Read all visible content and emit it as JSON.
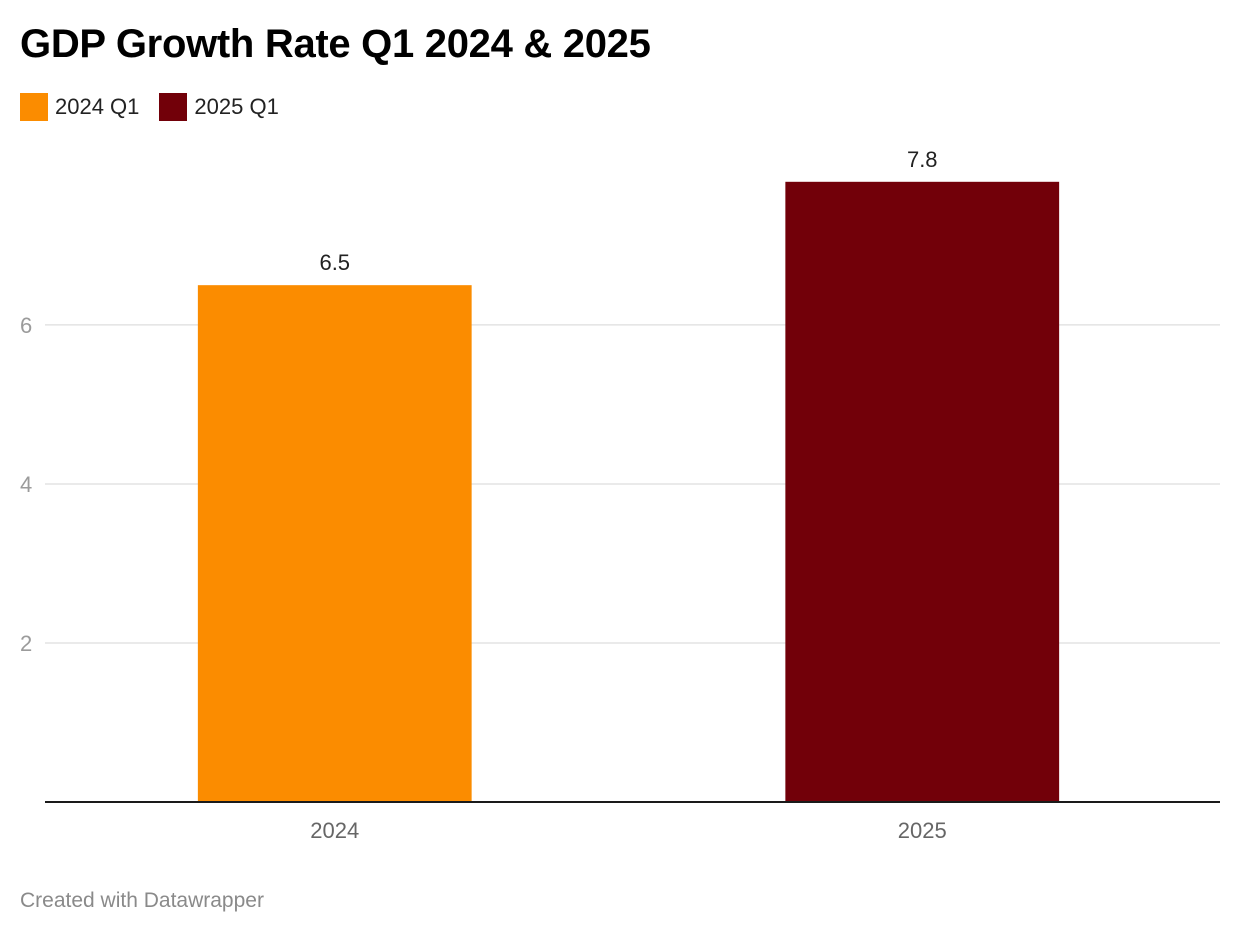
{
  "title": "GDP Growth Rate Q1 2024 & 2025",
  "footer": "Created with Datawrapper",
  "legend": [
    {
      "label": "2024 Q1",
      "color": "#fb8c00"
    },
    {
      "label": "2025 Q1",
      "color": "#720009"
    }
  ],
  "chart_data": {
    "type": "bar",
    "title": "GDP Growth Rate Q1 2024 & 2025",
    "categories": [
      "2024",
      "2025"
    ],
    "series": [
      {
        "name": "2024 Q1",
        "color": "#fb8c00",
        "values": [
          6.5,
          null
        ]
      },
      {
        "name": "2025 Q1",
        "color": "#720009",
        "values": [
          null,
          7.8
        ]
      }
    ],
    "values": [
      6.5,
      7.8
    ],
    "value_labels": [
      "6.5",
      "7.8"
    ],
    "bar_colors": [
      "#fb8c00",
      "#720009"
    ],
    "yticks": [
      2,
      4,
      6
    ],
    "ylim": [
      0,
      8.2
    ],
    "xlabel": "",
    "ylabel": "",
    "grid": true,
    "legend_position": "top-left"
  }
}
